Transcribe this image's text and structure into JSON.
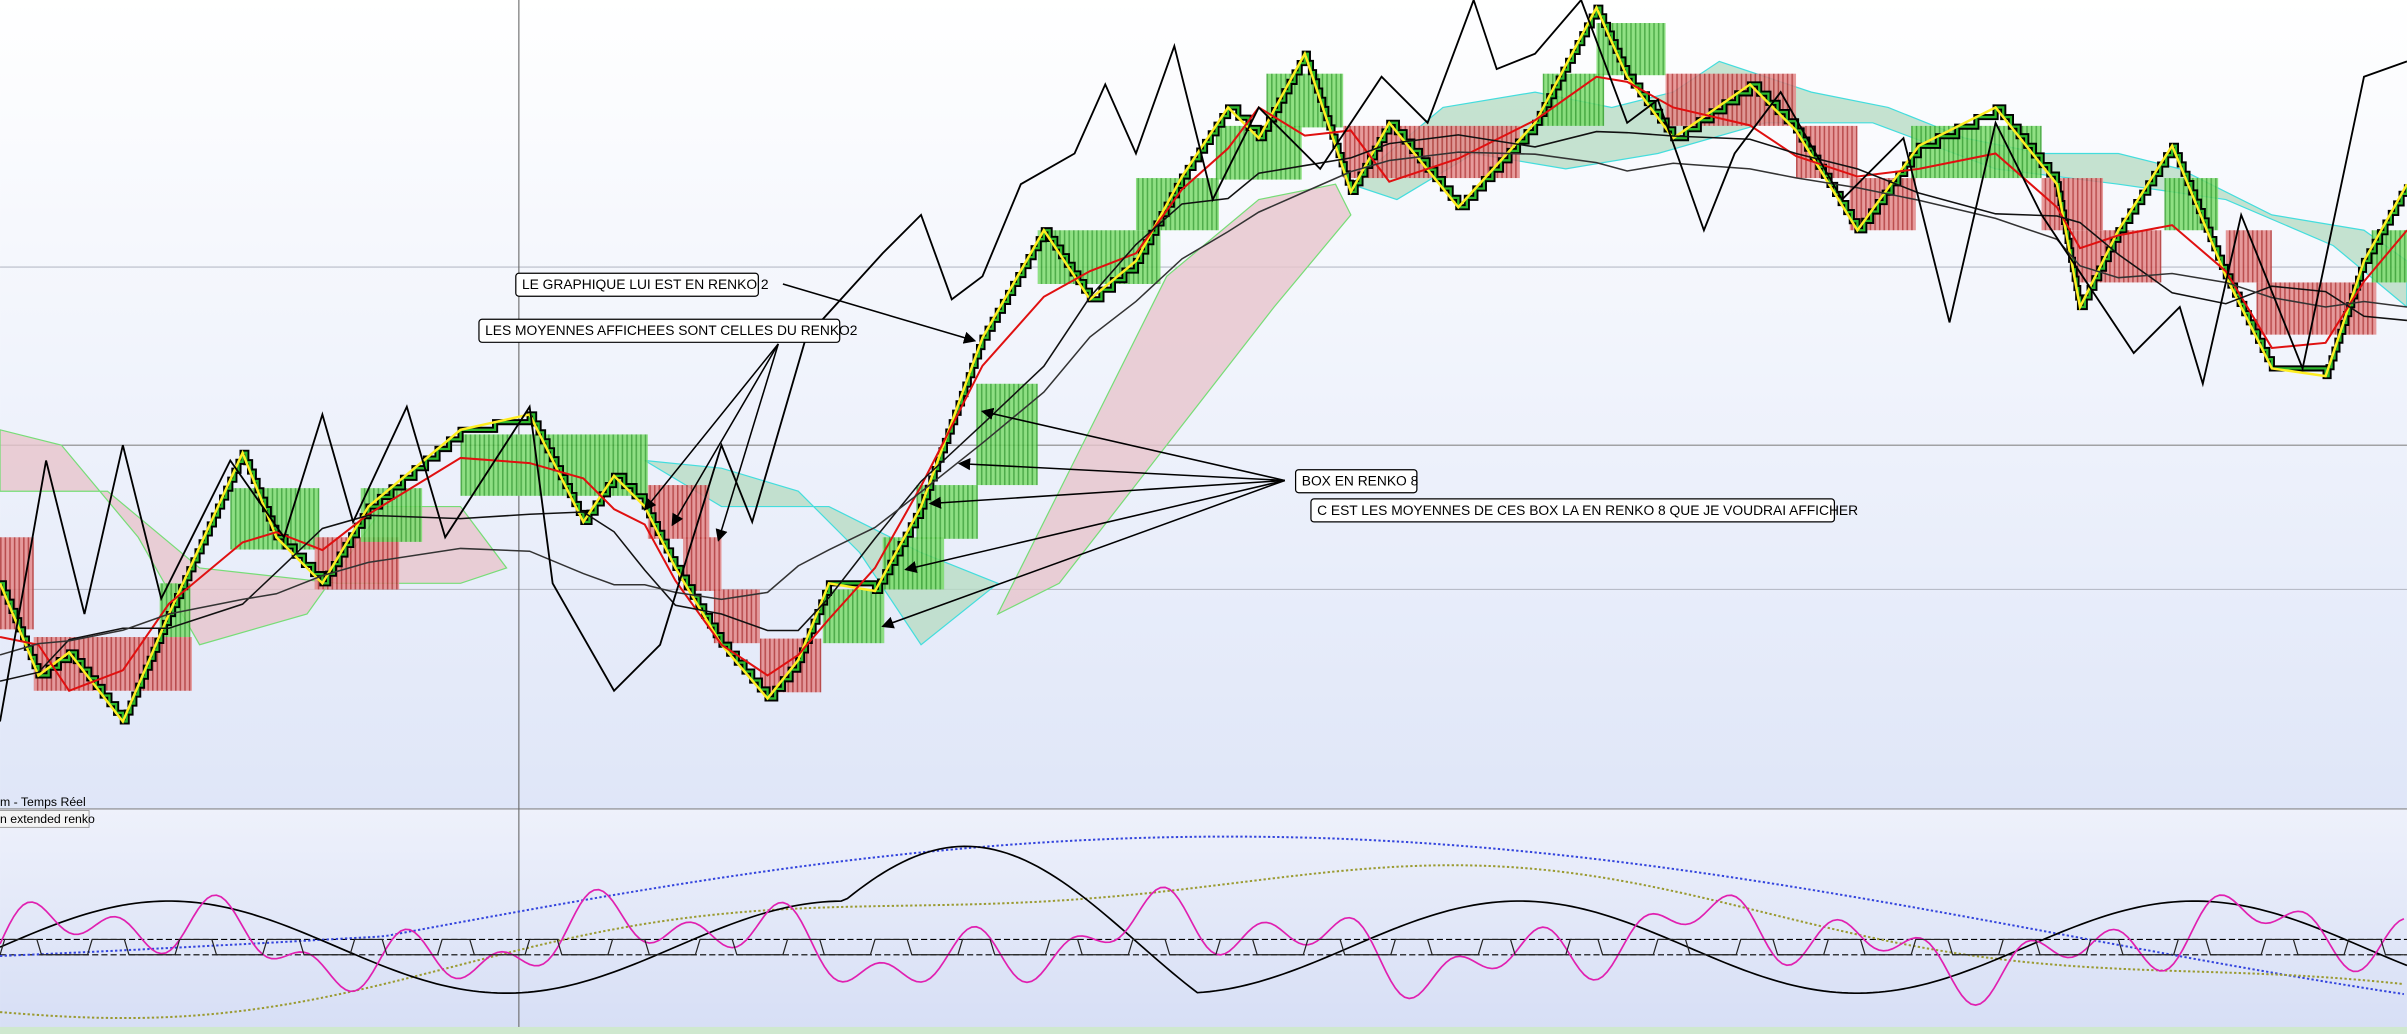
{
  "annotations": [
    {
      "text": "LE GRAPHIQUE LUI EST EN RENKO 2"
    },
    {
      "text": "LES MOYENNES AFFICHEES SONT CELLES DU RENKO2"
    },
    {
      "text": "BOX EN RENKO 8"
    },
    {
      "text": "C EST LES MOYENNES DE CES BOX LA EN RENKO 8 QUE JE VOUDRAI AFFICHER"
    }
  ],
  "indicator_panel": {
    "labels": [
      "m - Temps Réel",
      "n extended renko"
    ]
  }
}
